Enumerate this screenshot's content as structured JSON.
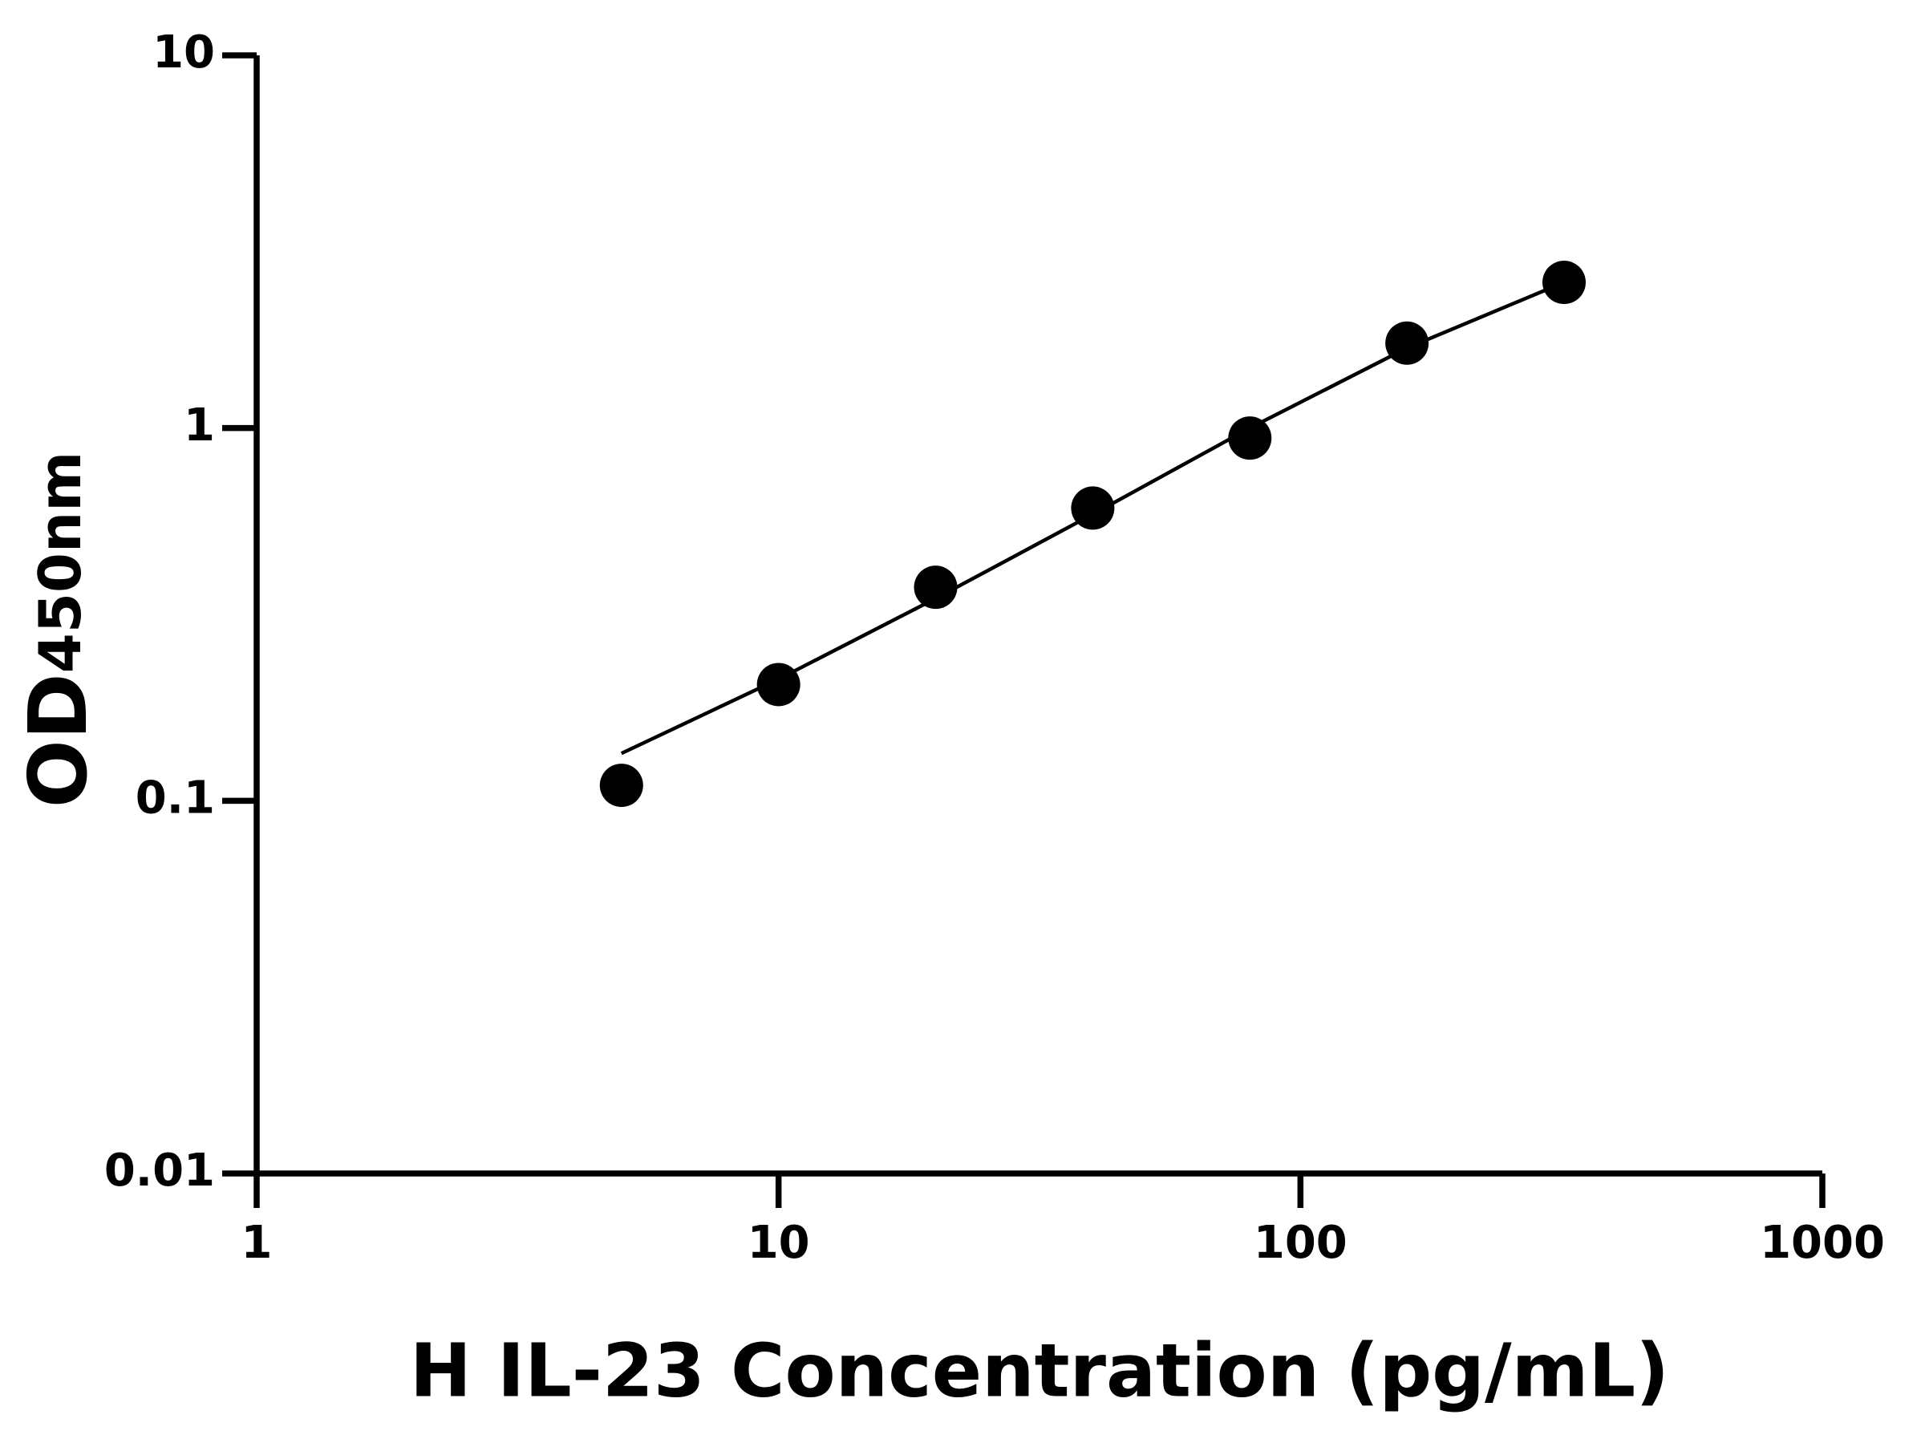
{
  "chart_data": {
    "type": "scatter",
    "x_label": "H IL-23 Concentration (pg/mL)",
    "y_label": {
      "main": "OD",
      "sub": "450nm"
    },
    "log_x": true,
    "log_y": true,
    "xlim": [
      1,
      1000
    ],
    "xticks": [
      1,
      10,
      100,
      1000
    ],
    "ylim": [
      0.01,
      10
    ],
    "yticks": [
      0.01,
      0.1,
      1,
      10
    ],
    "points": {
      "color": "#000000",
      "x": [
        5,
        10,
        20,
        40,
        80,
        160,
        320
      ],
      "values": [
        0.11,
        0.205,
        0.374,
        0.61,
        0.94,
        1.69,
        2.46
      ]
    },
    "fit": {
      "color": "#000000",
      "x": [
        5,
        10,
        20,
        40,
        80,
        160,
        320
      ],
      "values": [
        0.134,
        0.212,
        0.349,
        0.587,
        1.0,
        1.64,
        2.46
      ]
    }
  }
}
